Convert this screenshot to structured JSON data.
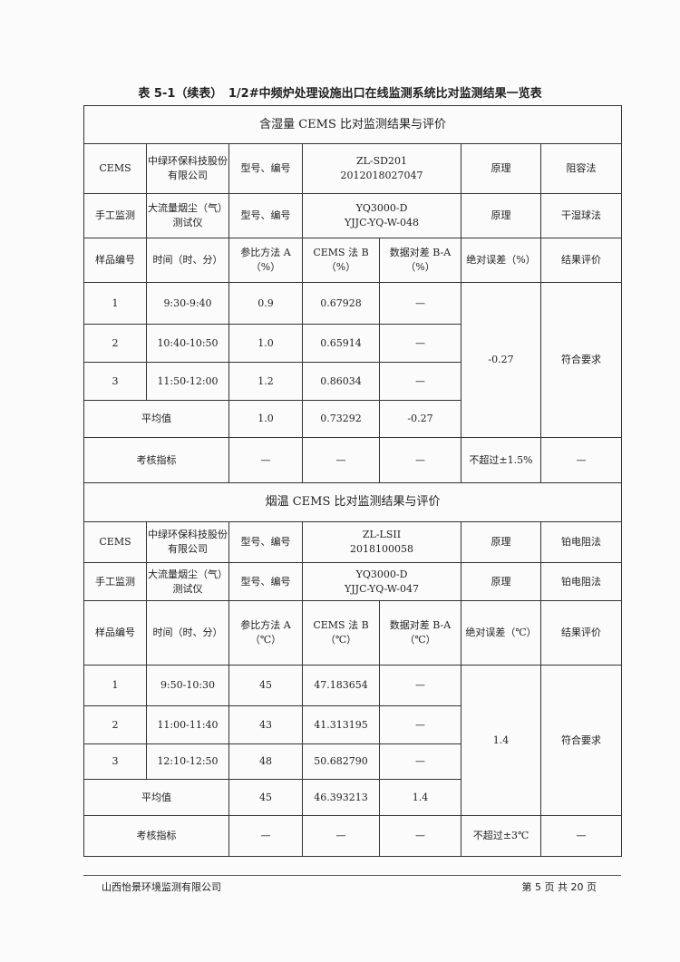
{
  "title": "表 5-1（续表）　1/2#中频炉处理设施出口在线监测系统比对监测结果一览表",
  "sections": [
    {
      "heading": "含湿量 CEMS 比对监测结果与评价",
      "cems": {
        "label": "CEMS",
        "maker": "中绿环保科技股份有限公司",
        "model_label": "型号、编号",
        "model": "ZL-SD201",
        "serial": "2012018027047",
        "principle_label": "原理",
        "principle": "阻容法"
      },
      "manual": {
        "label": "手工监测",
        "instrument": "大流量烟尘（气）测试仪",
        "model_label": "型号、编号",
        "model": "YQ3000-D",
        "serial": "YJJC-YQ-W-048",
        "principle_label": "原理",
        "principle": "干湿球法"
      },
      "headers": [
        "样品编号",
        "时间（时、分）",
        "参比方法 A（%）",
        "CEMS 法 B（%）",
        "数据对差 B-A（%）",
        "绝对误差（%）",
        "结果评价"
      ],
      "rows": [
        [
          "1",
          "9:30-9:40",
          "0.9",
          "0.67928",
          "—"
        ],
        [
          "2",
          "10:40-10:50",
          "1.0",
          "0.65914",
          "—"
        ],
        [
          "3",
          "11:50-12:00",
          "1.2",
          "0.86034",
          "—"
        ]
      ],
      "avg": {
        "label": "平均值",
        "a": "1.0",
        "b": "0.73292",
        "diff": "-0.27"
      },
      "abs_error": "-0.27",
      "result": "符合要求",
      "criteria": {
        "label": "考核指标",
        "a": "—",
        "b": "—",
        "diff": "—",
        "limit": "不超过±1.5%",
        "result": "—"
      }
    },
    {
      "heading": "烟温 CEMS 比对监测结果与评价",
      "cems": {
        "label": "CEMS",
        "maker": "中绿环保科技股份有限公司",
        "model_label": "型号、编号",
        "model": "ZL-LSII",
        "serial": "2018100058",
        "principle_label": "原理",
        "principle": "铂电阻法"
      },
      "manual": {
        "label": "手工监测",
        "instrument": "大流量烟尘（气）测试仪",
        "model_label": "型号、编号",
        "model": "YQ3000-D",
        "serial": "YJJC-YQ-W-047",
        "principle_label": "原理",
        "principle": "铂电阻法"
      },
      "headers": [
        "样品编号",
        "时间（时、分）",
        "参比方法 A（℃）",
        "CEMS 法 B（℃）",
        "数据对差 B-A（℃）",
        "绝对误差（℃）",
        "结果评价"
      ],
      "rows": [
        [
          "1",
          "9:50-10:30",
          "45",
          "47.183654",
          "—"
        ],
        [
          "2",
          "11:00-11:40",
          "43",
          "41.313195",
          "—"
        ],
        [
          "3",
          "12:10-12:50",
          "48",
          "50.682790",
          "—"
        ]
      ],
      "avg": {
        "label": "平均值",
        "a": "45",
        "b": "46.393213",
        "diff": "1.4"
      },
      "abs_error": "1.4",
      "result": "符合要求",
      "criteria": {
        "label": "考核指标",
        "a": "—",
        "b": "—",
        "diff": "—",
        "limit": "不超过±3℃",
        "result": "—"
      }
    }
  ],
  "footer": {
    "company": "山西怡景环境监测有限公司",
    "page": "第 5 页 共 20 页"
  }
}
